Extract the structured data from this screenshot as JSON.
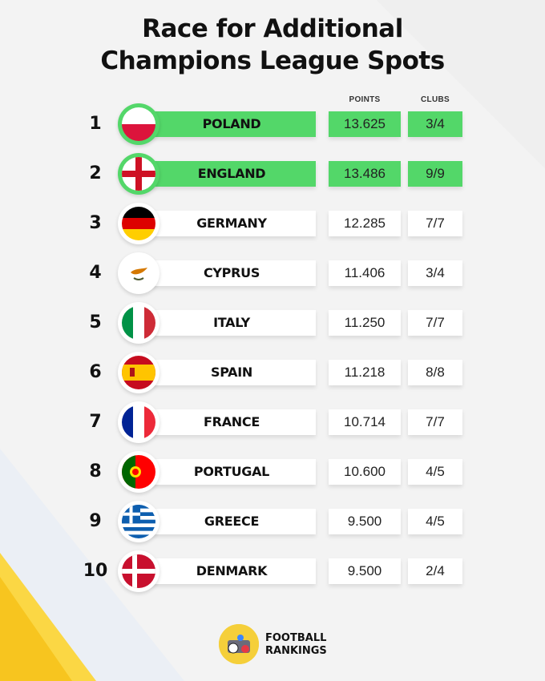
{
  "title_line1": "Race for Additional",
  "title_line2": "Champions League Spots",
  "columns": {
    "points": "POINTS",
    "clubs": "CLUBS"
  },
  "highlight_color": "#53d769",
  "rows": [
    {
      "rank": "1",
      "country": "POLAND",
      "points": "13.625",
      "clubs": "3/4",
      "highlighted": true,
      "flag": "poland-flag"
    },
    {
      "rank": "2",
      "country": "ENGLAND",
      "points": "13.486",
      "clubs": "9/9",
      "highlighted": true,
      "flag": "england-flag"
    },
    {
      "rank": "3",
      "country": "GERMANY",
      "points": "12.285",
      "clubs": "7/7",
      "highlighted": false,
      "flag": "germany-flag"
    },
    {
      "rank": "4",
      "country": "CYPRUS",
      "points": "11.406",
      "clubs": "3/4",
      "highlighted": false,
      "flag": "cyprus-flag"
    },
    {
      "rank": "5",
      "country": "ITALY",
      "points": "11.250",
      "clubs": "7/7",
      "highlighted": false,
      "flag": "italy-flag"
    },
    {
      "rank": "6",
      "country": "SPAIN",
      "points": "11.218",
      "clubs": "8/8",
      "highlighted": false,
      "flag": "spain-flag"
    },
    {
      "rank": "7",
      "country": "FRANCE",
      "points": "10.714",
      "clubs": "7/7",
      "highlighted": false,
      "flag": "france-flag"
    },
    {
      "rank": "8",
      "country": "PORTUGAL",
      "points": "10.600",
      "clubs": "4/5",
      "highlighted": false,
      "flag": "portugal-flag"
    },
    {
      "rank": "9",
      "country": "GREECE",
      "points": "9.500",
      "clubs": "4/5",
      "highlighted": false,
      "flag": "greece-flag"
    },
    {
      "rank": "10",
      "country": "DENMARK",
      "points": "9.500",
      "clubs": "2/4",
      "highlighted": false,
      "flag": "denmark-flag"
    }
  ],
  "brand": {
    "line1": "FOOTBALL",
    "line2": "RANKINGS",
    "icon": "football-rankings-logo"
  }
}
